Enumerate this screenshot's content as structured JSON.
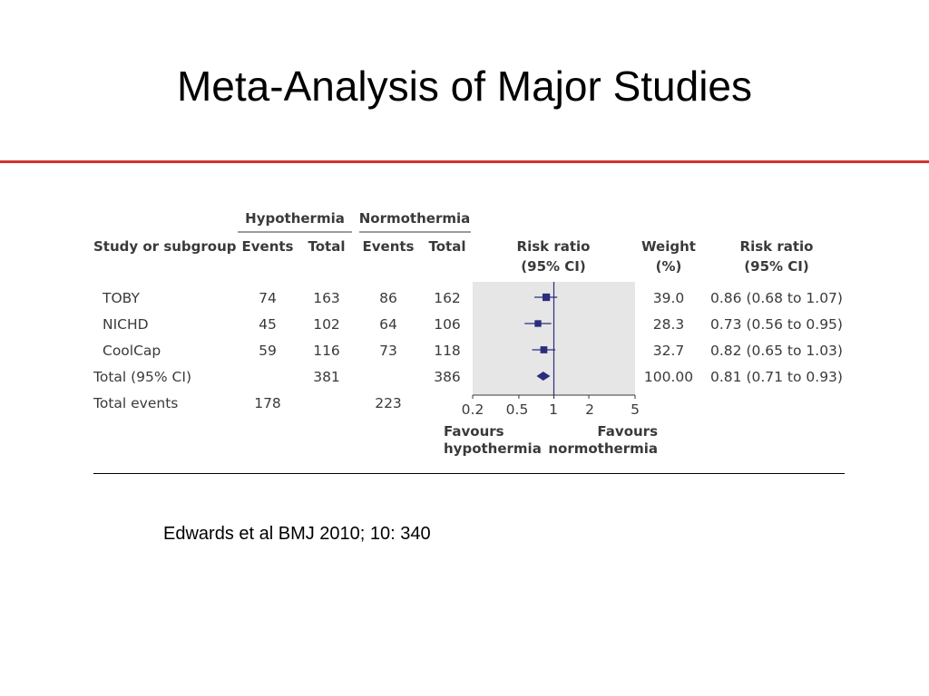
{
  "slide": {
    "title": "Meta-Analysis of Major Studies",
    "citation": "Edwards et al BMJ 2010; 10: 340"
  },
  "chart_data": {
    "type": "forest",
    "group_headers": {
      "hypothermia": "Hypothermia",
      "normothermia": "Normothermia"
    },
    "column_headers": {
      "study": "Study or subgroup",
      "h_events": "Events",
      "h_total": "Total",
      "n_events": "Events",
      "n_total": "Total",
      "rr_line1": "Risk ratio",
      "rr_line2": "(95% CI)",
      "weight_line1": "Weight",
      "weight_line2": "(%)",
      "rrci_line1": "Risk ratio",
      "rrci_line2": "(95% CI)"
    },
    "studies": [
      {
        "name": "TOBY",
        "h_events": "74",
        "h_total": "163",
        "n_events": "86",
        "n_total": "162",
        "weight": "39.0",
        "rr_text": "0.86 (0.68 to 1.07)",
        "rr": 0.86,
        "lo": 0.68,
        "hi": 1.07
      },
      {
        "name": "NICHD",
        "h_events": "45",
        "h_total": "102",
        "n_events": "64",
        "n_total": "106",
        "weight": "28.3",
        "rr_text": "0.73 (0.56 to 0.95)",
        "rr": 0.73,
        "lo": 0.56,
        "hi": 0.95
      },
      {
        "name": "CoolCap",
        "h_events": "59",
        "h_total": "116",
        "n_events": "73",
        "n_total": "118",
        "weight": "32.7",
        "rr_text": "0.82 (0.65 to 1.03)",
        "rr": 0.82,
        "lo": 0.65,
        "hi": 1.03
      }
    ],
    "total": {
      "name": "Total (95% CI)",
      "h_total": "381",
      "n_total": "386",
      "weight": "100.00",
      "rr_text": "0.81 (0.71 to 0.93)",
      "rr": 0.81,
      "lo": 0.71,
      "hi": 0.93
    },
    "total_events": {
      "name": "Total events",
      "h_events": "178",
      "n_events": "223"
    },
    "x_axis": {
      "scale": "log",
      "ticks": [
        0.2,
        0.5,
        1,
        2,
        5
      ],
      "tick_labels": [
        "0.2",
        "0.5",
        "1",
        "2",
        "5"
      ],
      "range": [
        0.2,
        5
      ],
      "reference": 1
    },
    "favours_left": {
      "line1": "Favours",
      "line2": "hypothermia"
    },
    "favours_right": {
      "line1": "Favours",
      "line2": "normothermia"
    },
    "colors": {
      "panel": "#e6e6e6",
      "marker": "#2b2d7c",
      "ref_line": "#2b2d7c",
      "text": "#3a3a3a",
      "rule": "#d6312b"
    }
  }
}
